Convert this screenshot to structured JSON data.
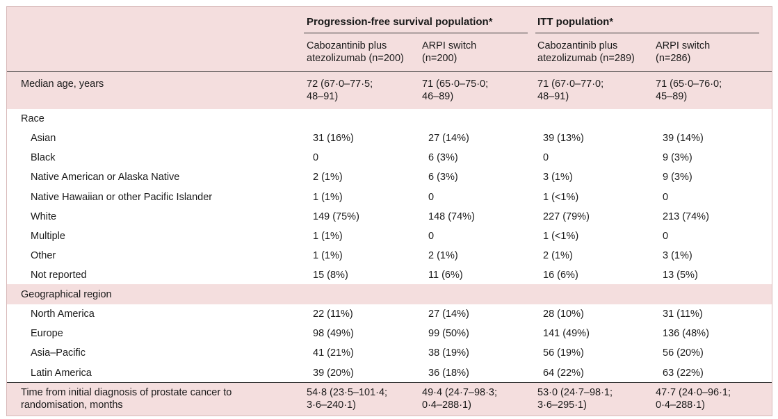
{
  "header": {
    "pfs_population": "Progression-free survival population*",
    "itt_population": "ITT population*",
    "col1": [
      "Cabozantinib plus",
      "atezolizumab (n=200)"
    ],
    "col2": [
      "ARPI switch",
      "(n=200)"
    ],
    "col3": [
      "Cabozantinib plus",
      "atezolizumab (n=289)"
    ],
    "col4": [
      "ARPI switch",
      "(n=286)"
    ]
  },
  "median_age": {
    "label": "Median age, years",
    "values": [
      [
        "72 (67·0–77·5;",
        "48–91)"
      ],
      [
        "71 (65·0–75·0;",
        "46–89)"
      ],
      [
        "71 (67·0–77·0;",
        "48–91)"
      ],
      [
        "71 (65·0–76·0;",
        "45–89)"
      ]
    ]
  },
  "race": {
    "label": "Race",
    "rows": [
      {
        "label": "Asian",
        "values": [
          "31 (16%)",
          "27 (14%)",
          "39 (13%)",
          "39 (14%)"
        ]
      },
      {
        "label": "Black",
        "values": [
          "0",
          "6 (3%)",
          "0",
          "9 (3%)"
        ]
      },
      {
        "label": "Native American or Alaska Native",
        "values": [
          "2 (1%)",
          "6 (3%)",
          "3 (1%)",
          "9 (3%)"
        ]
      },
      {
        "label": "Native Hawaiian or other Pacific Islander",
        "values": [
          "1 (1%)",
          "0",
          "1 (<1%)",
          "0"
        ]
      },
      {
        "label": "White",
        "values": [
          "149 (75%)",
          "148 (74%)",
          "227 (79%)",
          "213 (74%)"
        ]
      },
      {
        "label": "Multiple",
        "values": [
          "1 (1%)",
          "0",
          "1 (<1%)",
          "0"
        ]
      },
      {
        "label": "Other",
        "values": [
          "1 (1%)",
          "2 (1%)",
          "2 (1%)",
          "3 (1%)"
        ]
      },
      {
        "label": "Not reported",
        "values": [
          "15 (8%)",
          "11 (6%)",
          "16 (6%)",
          "13 (5%)"
        ]
      }
    ]
  },
  "region": {
    "label": "Geographical region",
    "rows": [
      {
        "label": "North America",
        "values": [
          "22 (11%)",
          "27 (14%)",
          "28 (10%)",
          "31 (11%)"
        ]
      },
      {
        "label": "Europe",
        "values": [
          "98 (49%)",
          "99 (50%)",
          "141 (49%)",
          "136 (48%)"
        ]
      },
      {
        "label": "Asia–Pacific",
        "values": [
          "41 (21%)",
          "38 (19%)",
          "56 (19%)",
          "56 (20%)"
        ]
      },
      {
        "label": "Latin America",
        "values": [
          "39 (20%)",
          "36 (18%)",
          "64 (22%)",
          "63 (22%)"
        ]
      }
    ]
  },
  "time_diagnosis": {
    "label": [
      "Time from initial diagnosis of prostate cancer to",
      "randomisation, months"
    ],
    "values": [
      [
        "54·8 (23·5–101·4;",
        "3·6–240·1)"
      ],
      [
        "49·4 (24·7–98·3;",
        "0·4–288·1)"
      ],
      [
        "53·0 (24·7–98·1;",
        "3·6–295·1)"
      ],
      [
        "47·7 (24·0–96·1;",
        "0·4–288·1)"
      ]
    ]
  }
}
